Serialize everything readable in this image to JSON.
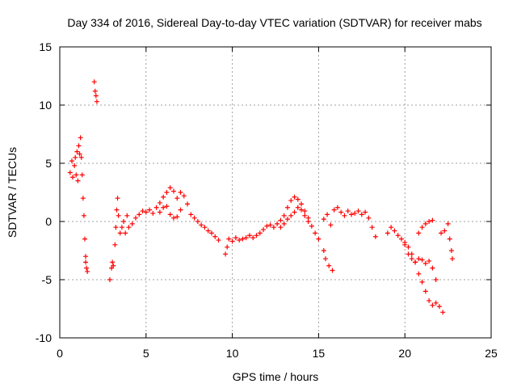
{
  "chart_data": {
    "type": "scatter",
    "title": "Day 334 of 2016, Sidereal Day-to-day VTEC variation (SDTVAR) for receiver mabs",
    "xlabel": "GPS time / hours",
    "ylabel": "SDTVAR / TECUs",
    "xlim": [
      0,
      25
    ],
    "ylim": [
      -10,
      15
    ],
    "xticks": [
      0,
      5,
      10,
      15,
      20,
      25
    ],
    "yticks": [
      -10,
      -5,
      0,
      5,
      10,
      15
    ],
    "grid": true,
    "marker": "+",
    "color": "#ff0000",
    "series": [
      {
        "name": "SDTVAR",
        "values": [
          [
            0.6,
            4.2
          ],
          [
            0.7,
            5.2
          ],
          [
            0.75,
            3.8
          ],
          [
            0.85,
            4.8
          ],
          [
            0.9,
            5.5
          ],
          [
            0.95,
            4.0
          ],
          [
            1.0,
            6.0
          ],
          [
            1.05,
            3.5
          ],
          [
            1.1,
            6.5
          ],
          [
            1.15,
            5.8
          ],
          [
            1.2,
            7.2
          ],
          [
            1.25,
            5.5
          ],
          [
            1.3,
            4.0
          ],
          [
            1.35,
            2.0
          ],
          [
            1.4,
            0.5
          ],
          [
            1.45,
            -1.5
          ],
          [
            1.5,
            -3.0
          ],
          [
            1.55,
            -4.0
          ],
          [
            1.6,
            -4.3
          ],
          [
            1.5,
            -3.5
          ],
          [
            2.0,
            12.0
          ],
          [
            2.05,
            11.2
          ],
          [
            2.1,
            10.8
          ],
          [
            2.15,
            10.3
          ],
          [
            2.9,
            -5.0
          ],
          [
            3.0,
            -4.0
          ],
          [
            3.05,
            -3.5
          ],
          [
            3.1,
            -3.8
          ],
          [
            3.2,
            -2.0
          ],
          [
            3.25,
            -0.5
          ],
          [
            3.3,
            1.0
          ],
          [
            3.35,
            2.0
          ],
          [
            3.4,
            0.5
          ],
          [
            3.5,
            -1.0
          ],
          [
            3.6,
            -0.5
          ],
          [
            3.7,
            0.0
          ],
          [
            3.8,
            -1.0
          ],
          [
            3.9,
            0.5
          ],
          [
            4.0,
            -0.5
          ],
          [
            4.2,
            -0.2
          ],
          [
            4.4,
            0.3
          ],
          [
            4.6,
            0.6
          ],
          [
            4.8,
            0.9
          ],
          [
            5.0,
            0.8
          ],
          [
            5.2,
            1.0
          ],
          [
            5.4,
            0.7
          ],
          [
            5.6,
            1.2
          ],
          [
            5.8,
            1.6
          ],
          [
            6.0,
            2.1
          ],
          [
            6.2,
            2.5
          ],
          [
            6.4,
            2.9
          ],
          [
            6.6,
            2.6
          ],
          [
            6.8,
            2.0
          ],
          [
            7.0,
            1.0
          ],
          [
            5.8,
            0.8
          ],
          [
            6.0,
            1.2
          ],
          [
            6.2,
            1.3
          ],
          [
            6.4,
            0.6
          ],
          [
            6.6,
            0.3
          ],
          [
            6.8,
            0.4
          ],
          [
            7.0,
            2.5
          ],
          [
            7.2,
            2.2
          ],
          [
            7.4,
            1.5
          ],
          [
            7.6,
            0.6
          ],
          [
            7.8,
            0.3
          ],
          [
            8.0,
            0.0
          ],
          [
            8.2,
            -0.3
          ],
          [
            8.4,
            -0.5
          ],
          [
            8.6,
            -0.8
          ],
          [
            8.8,
            -1.0
          ],
          [
            9.0,
            -1.3
          ],
          [
            9.2,
            -1.6
          ],
          [
            9.6,
            -2.8
          ],
          [
            9.7,
            -2.2
          ],
          [
            9.8,
            -1.5
          ],
          [
            10.0,
            -1.7
          ],
          [
            10.2,
            -1.4
          ],
          [
            10.4,
            -1.6
          ],
          [
            10.6,
            -1.5
          ],
          [
            10.8,
            -1.4
          ],
          [
            11.0,
            -1.2
          ],
          [
            11.2,
            -1.4
          ],
          [
            11.4,
            -1.2
          ],
          [
            11.6,
            -1.0
          ],
          [
            11.8,
            -0.7
          ],
          [
            12.0,
            -0.4
          ],
          [
            12.2,
            -0.3
          ],
          [
            12.4,
            -0.5
          ],
          [
            12.6,
            -0.2
          ],
          [
            12.8,
            0.1
          ],
          [
            13.0,
            0.5
          ],
          [
            13.2,
            1.2
          ],
          [
            13.4,
            1.8
          ],
          [
            13.6,
            2.1
          ],
          [
            13.8,
            1.9
          ],
          [
            14.0,
            1.5
          ],
          [
            14.2,
            0.9
          ],
          [
            14.4,
            0.3
          ],
          [
            14.6,
            -0.4
          ],
          [
            14.8,
            -1.0
          ],
          [
            15.0,
            -1.5
          ],
          [
            12.8,
            -0.5
          ],
          [
            13.0,
            -0.2
          ],
          [
            13.2,
            0.2
          ],
          [
            13.4,
            0.5
          ],
          [
            13.6,
            0.8
          ],
          [
            13.8,
            1.2
          ],
          [
            14.0,
            1.0
          ],
          [
            14.2,
            0.5
          ],
          [
            14.4,
            0.0
          ],
          [
            15.3,
            -2.5
          ],
          [
            15.4,
            -3.2
          ],
          [
            15.6,
            -3.8
          ],
          [
            15.8,
            -4.2
          ],
          [
            15.3,
            0.2
          ],
          [
            15.5,
            0.6
          ],
          [
            15.7,
            -0.3
          ],
          [
            15.9,
            1.0
          ],
          [
            16.1,
            1.2
          ],
          [
            16.3,
            0.8
          ],
          [
            16.5,
            0.5
          ],
          [
            16.7,
            0.9
          ],
          [
            16.9,
            0.6
          ],
          [
            17.1,
            0.7
          ],
          [
            17.3,
            0.9
          ],
          [
            17.5,
            0.6
          ],
          [
            17.7,
            0.8
          ],
          [
            17.9,
            0.3
          ],
          [
            18.1,
            -0.5
          ],
          [
            18.3,
            -1.3
          ],
          [
            19.0,
            -1.0
          ],
          [
            19.2,
            -0.5
          ],
          [
            19.4,
            -0.8
          ],
          [
            19.6,
            -1.2
          ],
          [
            19.8,
            -1.5
          ],
          [
            20.0,
            -1.8
          ],
          [
            20.2,
            -2.2
          ],
          [
            20.4,
            -2.8
          ],
          [
            20.6,
            -3.5
          ],
          [
            20.8,
            -4.5
          ],
          [
            21.0,
            -5.2
          ],
          [
            21.2,
            -6.0
          ],
          [
            21.4,
            -6.8
          ],
          [
            21.6,
            -7.2
          ],
          [
            21.8,
            -7.0
          ],
          [
            22.0,
            -7.3
          ],
          [
            22.2,
            -7.8
          ],
          [
            20.0,
            -2.0
          ],
          [
            20.2,
            -2.8
          ],
          [
            20.4,
            -3.2
          ],
          [
            20.6,
            -3.5
          ],
          [
            20.8,
            -3.2
          ],
          [
            21.0,
            -3.3
          ],
          [
            21.2,
            -3.6
          ],
          [
            21.4,
            -3.4
          ],
          [
            21.6,
            -4.0
          ],
          [
            21.8,
            -5.0
          ],
          [
            20.8,
            -1.0
          ],
          [
            21.0,
            -0.5
          ],
          [
            21.2,
            -0.2
          ],
          [
            21.4,
            0.0
          ],
          [
            21.6,
            0.1
          ],
          [
            22.1,
            -1.0
          ],
          [
            22.3,
            -0.8
          ],
          [
            22.5,
            -0.2
          ],
          [
            22.6,
            -1.5
          ],
          [
            22.7,
            -2.5
          ],
          [
            22.75,
            -3.2
          ]
        ]
      }
    ]
  }
}
